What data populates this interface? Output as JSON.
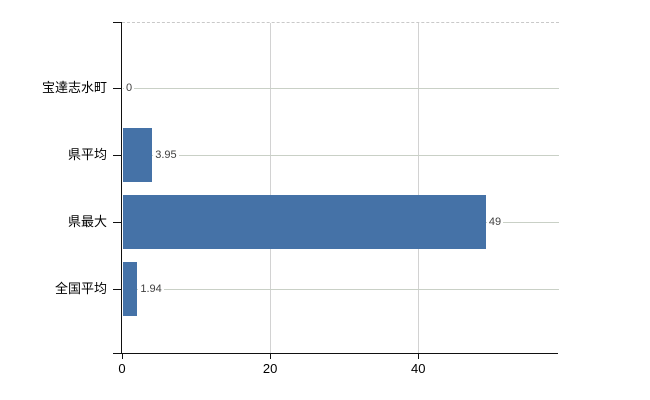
{
  "chart_data": {
    "type": "bar",
    "orientation": "horizontal",
    "title": "",
    "categories": [
      "宝達志水町",
      "県平均",
      "県最大",
      "全国平均"
    ],
    "values": [
      0,
      3.95,
      49,
      1.94
    ],
    "value_labels": [
      "0",
      "3.95",
      "49",
      "1.94"
    ],
    "xlabel": "",
    "ylabel": "",
    "xlim": [
      0,
      59
    ],
    "xticks": [
      0,
      20,
      40
    ],
    "xtick_labels": [
      "0",
      "20",
      "40"
    ],
    "grid": true,
    "legend": null,
    "colors": {
      "bar": "#4572a7",
      "grid_vertical": "#d2d2d2",
      "grid_horizontal": "#c9d0c6",
      "plot_top_border": "#c9c9c9",
      "axis": "#111111",
      "value_label_text": "#404040",
      "category_label_text": "#000000",
      "tick_label_text": "#000000",
      "background": "#ffffff"
    }
  }
}
